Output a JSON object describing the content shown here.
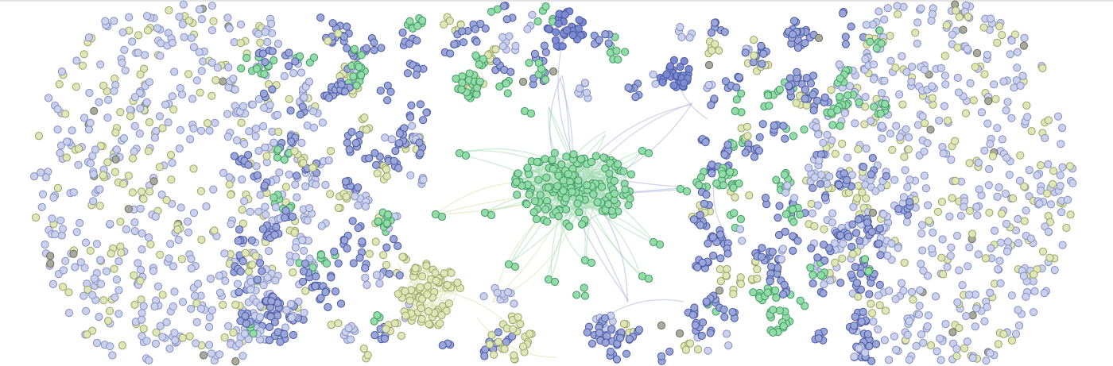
{
  "graph": {
    "type": "network",
    "labels": [],
    "node_groups": [
      {
        "id": "blue-group",
        "fill": "#9ba6d8",
        "stroke": "#4a58a4",
        "dense_fill": "#7c8bd0"
      },
      {
        "id": "green-group",
        "fill": "#93dcaa",
        "stroke": "#3f9a62"
      },
      {
        "id": "yellow-group",
        "fill": "#dfe7b8",
        "stroke": "#9aa466"
      },
      {
        "id": "pale-blue-group",
        "fill": "#cbd1ec",
        "stroke": "#8590c4"
      },
      {
        "id": "gray-group",
        "fill": "#a8aa9c",
        "stroke": "#6b6d60"
      }
    ],
    "edge_colors": {
      "green": "#a6dcb4",
      "blue": "#aab2da",
      "yellow": "#d9e2aa"
    },
    "background": "#ffffff"
  }
}
